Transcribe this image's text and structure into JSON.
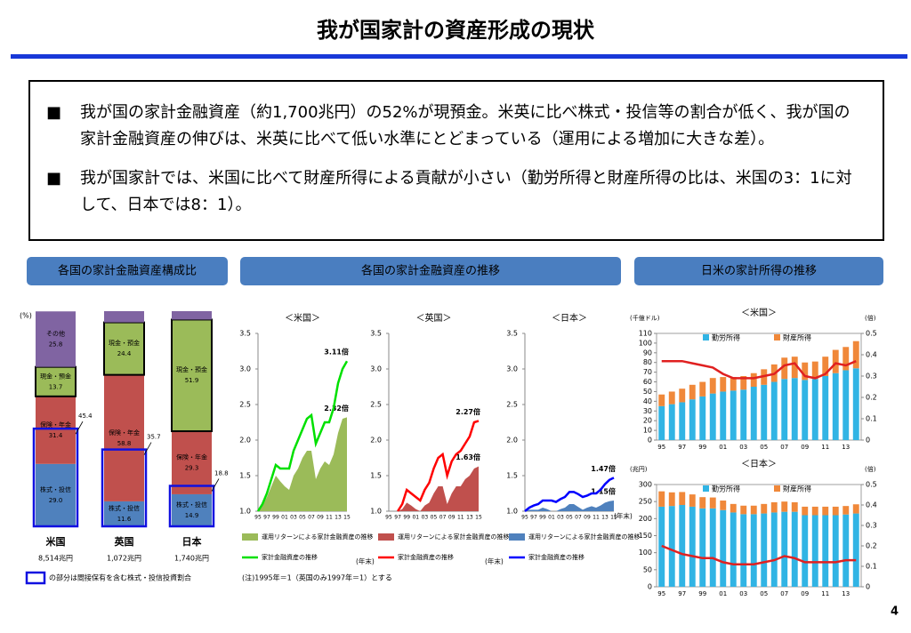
{
  "header": {
    "title": "我が国家計の資産形成の現状"
  },
  "bullets": [
    "我が国の家計金融資産（約1,700兆円）の52%が現預金。米英に比べ株式・投信等の割合が低く、我が国の家計金融資産の伸びは、米英に比べて低い水準にとどまっている（運用による増加に大きな差）。",
    "我が国家計では、米国に比べて財産所得による貢献が小さい（勤労所得と財産所得の比は、米国の3：1に対して、日本では8：1）。"
  ],
  "sections": [
    "各国の家計金融資産構成比",
    "各国の家計金融資産の推移",
    "日米の家計所得の推移"
  ],
  "footnote": "(注)1995年＝1（英国のみ1997年＝1）とする",
  "page_number": "4",
  "chart_data": [
    {
      "type": "stacked_bar",
      "ylabel": "(%)",
      "ylim": [
        0,
        100
      ],
      "categories": [
        "米国",
        "英国",
        "日本"
      ],
      "totals": [
        "8,514兆円",
        "1,072兆円",
        "1,740兆円"
      ],
      "series": [
        {
          "name": "株式・投信",
          "color": "#4f81bd",
          "values": [
            29.0,
            11.6,
            14.9
          ],
          "value_labels": [
            "29.0",
            "11.6",
            "14.9"
          ]
        },
        {
          "name": "保険・年金",
          "color": "#c0504d",
          "values": [
            31.4,
            58.8,
            29.3
          ],
          "value_labels": [
            "31.4",
            "58.8",
            "29.3"
          ]
        },
        {
          "name": "現金・預金",
          "color": "#9bbb59",
          "values": [
            13.7,
            24.4,
            51.9
          ],
          "value_labels": [
            "13.7",
            "24.4",
            "51.9"
          ]
        },
        {
          "name": "その他",
          "color": "#8064a2",
          "values": [
            25.8,
            5.2,
            3.9
          ],
          "value_labels": [
            "25.8",
            null,
            null
          ]
        }
      ],
      "boxed": {
        "color": "#1010e0",
        "values": [
          45.4,
          35.7,
          18.8
        ],
        "note": "の部分は間接保有を含む株式・投信投資割合"
      }
    },
    {
      "type": "line_area",
      "title": "＜米国＞",
      "xlabel": "(年末)",
      "categories": [
        "95",
        null,
        "97",
        null,
        "99",
        null,
        "01",
        null,
        "03",
        null,
        "05",
        null,
        "07",
        null,
        "09",
        null,
        "11",
        null,
        "13",
        null,
        "15"
      ],
      "ylim": [
        1,
        3.5
      ],
      "yticks": [
        {
          "value": 1,
          "label": "1.0"
        },
        {
          "value": 1.5,
          "label": "1.5"
        },
        {
          "value": 2,
          "label": "2.0"
        },
        {
          "value": 2.5,
          "label": "2.5"
        },
        {
          "value": 3,
          "label": "3.0"
        },
        {
          "value": 3.5,
          "label": "3.5"
        }
      ],
      "series": [
        {
          "name": "運用リターンによる家計金融資産の推移",
          "type": "area",
          "color": "#9bbb59",
          "end_label": "2.32倍",
          "values": [
            1.0,
            1.08,
            1.2,
            1.35,
            1.5,
            1.42,
            1.35,
            1.3,
            1.5,
            1.6,
            1.75,
            1.85,
            1.85,
            1.45,
            1.6,
            1.7,
            1.65,
            1.8,
            2.1,
            2.3,
            2.32
          ]
        },
        {
          "name": "家計金融資産の推移",
          "type": "line",
          "color": "#00e000",
          "end_label": "3.11倍",
          "values": [
            1.0,
            1.1,
            1.25,
            1.45,
            1.65,
            1.6,
            1.6,
            1.6,
            1.85,
            2.0,
            2.15,
            2.3,
            2.35,
            1.95,
            2.1,
            2.25,
            2.25,
            2.45,
            2.8,
            3.0,
            3.11
          ]
        }
      ]
    },
    {
      "type": "line_area",
      "title": "＜英国＞",
      "xlabel": "(年末)",
      "categories": [
        "95",
        null,
        "97",
        null,
        "99",
        null,
        "01",
        null,
        "03",
        null,
        "05",
        null,
        "07",
        null,
        "09",
        null,
        "11",
        null,
        "13",
        null,
        "15"
      ],
      "ylim": [
        1,
        3.5
      ],
      "yticks": [
        {
          "value": 1,
          "label": "1.0"
        },
        {
          "value": 1.5,
          "label": "1.5"
        },
        {
          "value": 2,
          "label": "2.0"
        },
        {
          "value": 2.5,
          "label": "2.5"
        },
        {
          "value": 3,
          "label": "3.0"
        },
        {
          "value": 3.5,
          "label": "3.5"
        }
      ],
      "series": [
        {
          "name": "運用リターンによる家計金融資産の推移",
          "type": "area",
          "color": "#c0504d",
          "end_label": "1.63倍",
          "values": [
            null,
            null,
            1.0,
            1.03,
            1.12,
            1.08,
            1.03,
            1.0,
            1.08,
            1.12,
            1.25,
            1.35,
            1.35,
            1.1,
            1.25,
            1.35,
            1.35,
            1.45,
            1.5,
            1.6,
            1.63
          ]
        },
        {
          "name": "家計金融資産の推移",
          "type": "line",
          "color": "#ff0000",
          "end_label": "2.27倍",
          "values": [
            null,
            null,
            1.0,
            1.1,
            1.3,
            1.25,
            1.2,
            1.15,
            1.3,
            1.4,
            1.6,
            1.75,
            1.8,
            1.5,
            1.7,
            1.8,
            1.85,
            1.95,
            2.05,
            2.25,
            2.27
          ]
        }
      ]
    },
    {
      "type": "line_area",
      "title": "＜日本＞",
      "xlabel": "(年末)",
      "categories": [
        "95",
        null,
        "97",
        null,
        "99",
        null,
        "01",
        null,
        "03",
        null,
        "05",
        null,
        "07",
        null,
        "09",
        null,
        "11",
        null,
        "13",
        null,
        "15"
      ],
      "ylim": [
        1,
        3.5
      ],
      "yticks": [
        {
          "value": 1,
          "label": "1.0"
        },
        {
          "value": 1.5,
          "label": "1.5"
        },
        {
          "value": 2,
          "label": "2.0"
        },
        {
          "value": 2.5,
          "label": "2.5"
        },
        {
          "value": 3,
          "label": "3.0"
        },
        {
          "value": 3.5,
          "label": "3.5"
        }
      ],
      "series": [
        {
          "name": "運用リターンによる家計金融資産の推移",
          "type": "area",
          "color": "#4f81bd",
          "end_label": "1.15倍",
          "values": [
            1.0,
            1.02,
            1.02,
            1.02,
            1.05,
            1.03,
            1.0,
            1.0,
            1.03,
            1.05,
            1.1,
            1.1,
            1.06,
            1.02,
            1.05,
            1.07,
            1.05,
            1.08,
            1.12,
            1.14,
            1.15
          ]
        },
        {
          "name": "家計金融資産の推移",
          "type": "line",
          "color": "#0000ff",
          "end_label": "1.47倍",
          "values": [
            1.0,
            1.05,
            1.08,
            1.1,
            1.15,
            1.15,
            1.15,
            1.13,
            1.17,
            1.2,
            1.27,
            1.27,
            1.24,
            1.2,
            1.22,
            1.25,
            1.25,
            1.3,
            1.38,
            1.44,
            1.47
          ]
        }
      ]
    },
    {
      "type": "bar_line",
      "title": "＜米国＞",
      "ylabel": "(千億ドル)",
      "y2label": "(倍)",
      "categories": [
        "95",
        null,
        "97",
        null,
        "99",
        null,
        "01",
        null,
        "03",
        null,
        "05",
        null,
        "07",
        null,
        "09",
        null,
        "11",
        null,
        "13",
        null
      ],
      "ylim": [
        0,
        110
      ],
      "yticks": [
        0,
        10,
        20,
        30,
        40,
        50,
        60,
        70,
        80,
        90,
        100,
        110
      ],
      "y2lim": [
        0,
        0.5
      ],
      "y2ticks": [
        0,
        0.1,
        0.2,
        0.3,
        0.4,
        0.5
      ],
      "series": [
        {
          "name": "勤労所得",
          "type": "bar",
          "color": "#31b4e4",
          "values": [
            35,
            37,
            39,
            42,
            45,
            48,
            50,
            51,
            52,
            55,
            57,
            60,
            63,
            64,
            62,
            63,
            66,
            69,
            72,
            74
          ]
        },
        {
          "name": "財産所得",
          "type": "bar",
          "color": "#f0883a",
          "values": [
            12,
            13,
            14,
            15,
            15,
            16,
            15,
            14,
            14,
            14,
            16,
            18,
            22,
            22,
            18,
            18,
            20,
            24,
            24,
            28
          ]
        },
        {
          "type": "line",
          "axis": "y2",
          "color": "#e02020",
          "values": [
            0.37,
            0.37,
            0.37,
            0.36,
            0.35,
            0.34,
            0.31,
            0.29,
            0.29,
            0.29,
            0.3,
            0.31,
            0.35,
            0.36,
            0.3,
            0.29,
            0.31,
            0.36,
            0.35,
            0.37
          ]
        }
      ]
    },
    {
      "type": "bar_line",
      "title": "＜日本＞",
      "ylabel": "(兆円)",
      "y2label": "(倍)",
      "categories": [
        "95",
        null,
        "97",
        null,
        "99",
        null,
        "01",
        null,
        "03",
        null,
        "05",
        null,
        "07",
        null,
        "09",
        null,
        "11",
        null,
        "13",
        null
      ],
      "ylim": [
        0,
        300
      ],
      "yticks": [
        0,
        50,
        100,
        150,
        200,
        250,
        300
      ],
      "y2lim": [
        0,
        0.5
      ],
      "y2ticks": [
        0,
        0.1,
        0.2,
        0.3,
        0.4,
        0.5
      ],
      "series": [
        {
          "name": "勤労所得",
          "type": "bar",
          "color": "#31b4e4",
          "values": [
            235,
            237,
            240,
            235,
            230,
            230,
            225,
            218,
            213,
            213,
            215,
            218,
            220,
            220,
            210,
            210,
            210,
            210,
            212,
            215
          ]
        },
        {
          "name": "財産所得",
          "type": "bar",
          "color": "#f0883a",
          "values": [
            45,
            40,
            38,
            36,
            33,
            32,
            28,
            25,
            25,
            25,
            28,
            30,
            30,
            28,
            25,
            25,
            25,
            25,
            25,
            27
          ]
        },
        {
          "type": "line",
          "axis": "y2",
          "color": "#e02020",
          "values": [
            0.2,
            0.18,
            0.16,
            0.15,
            0.14,
            0.14,
            0.12,
            0.11,
            0.11,
            0.11,
            0.12,
            0.13,
            0.15,
            0.14,
            0.12,
            0.12,
            0.12,
            0.12,
            0.13,
            0.13
          ]
        }
      ]
    }
  ]
}
